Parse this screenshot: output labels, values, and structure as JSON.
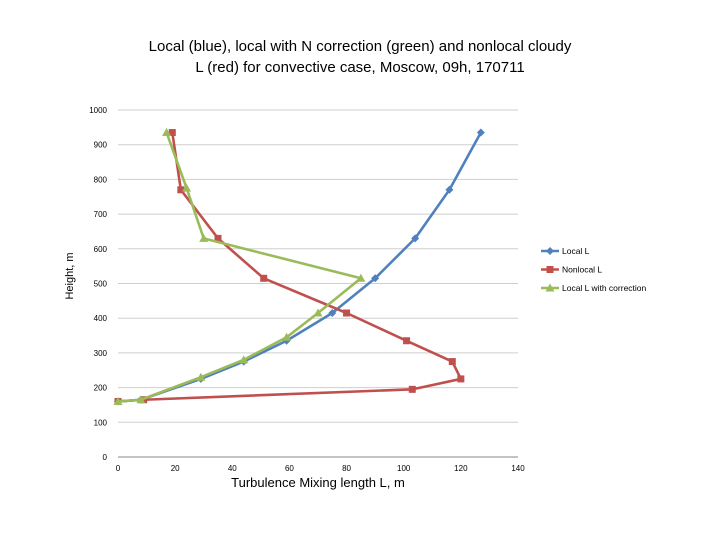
{
  "chart_data": {
    "type": "line",
    "title_line1": "Local (blue), local with N correction (green) and nonlocal cloudy",
    "title_line2": "L (red) for convective case, Moscow, 09h, 170711",
    "xlabel": "Turbulence Mixing length L, m",
    "ylabel": "Height, m",
    "xlim": [
      0,
      140
    ],
    "ylim": [
      0,
      1000
    ],
    "xticks": [
      0,
      20,
      40,
      60,
      80,
      100,
      120,
      140
    ],
    "yticks": [
      0,
      100,
      200,
      300,
      400,
      500,
      600,
      700,
      800,
      900,
      1000
    ],
    "grid": "horizontal",
    "legend_position": "right",
    "series": [
      {
        "name": "Local L",
        "color": "#4F81BD",
        "marker": "diamond",
        "points": [
          [
            0,
            160
          ],
          [
            8,
            165
          ],
          [
            29,
            225
          ],
          [
            44,
            275
          ],
          [
            59,
            335
          ],
          [
            75,
            415
          ],
          [
            90,
            515
          ],
          [
            104,
            630
          ],
          [
            116,
            770
          ],
          [
            127,
            935
          ]
        ]
      },
      {
        "name": "Nonlocal L",
        "color": "#C0504D",
        "marker": "square",
        "points": [
          [
            0,
            160
          ],
          [
            9,
            165
          ],
          [
            103,
            195
          ],
          [
            120,
            225
          ],
          [
            117,
            275
          ],
          [
            101,
            335
          ],
          [
            80,
            415
          ],
          [
            51,
            515
          ],
          [
            35,
            630
          ],
          [
            22,
            770
          ],
          [
            19,
            935
          ]
        ]
      },
      {
        "name": "Local L with correction",
        "color": "#9BBB59",
        "marker": "triangle",
        "points": [
          [
            0,
            160
          ],
          [
            8,
            165
          ],
          [
            29,
            230
          ],
          [
            44,
            280
          ],
          [
            59,
            345
          ],
          [
            70,
            415
          ],
          [
            85,
            515
          ],
          [
            30,
            630
          ],
          [
            24,
            775
          ],
          [
            17,
            935
          ]
        ]
      }
    ]
  }
}
